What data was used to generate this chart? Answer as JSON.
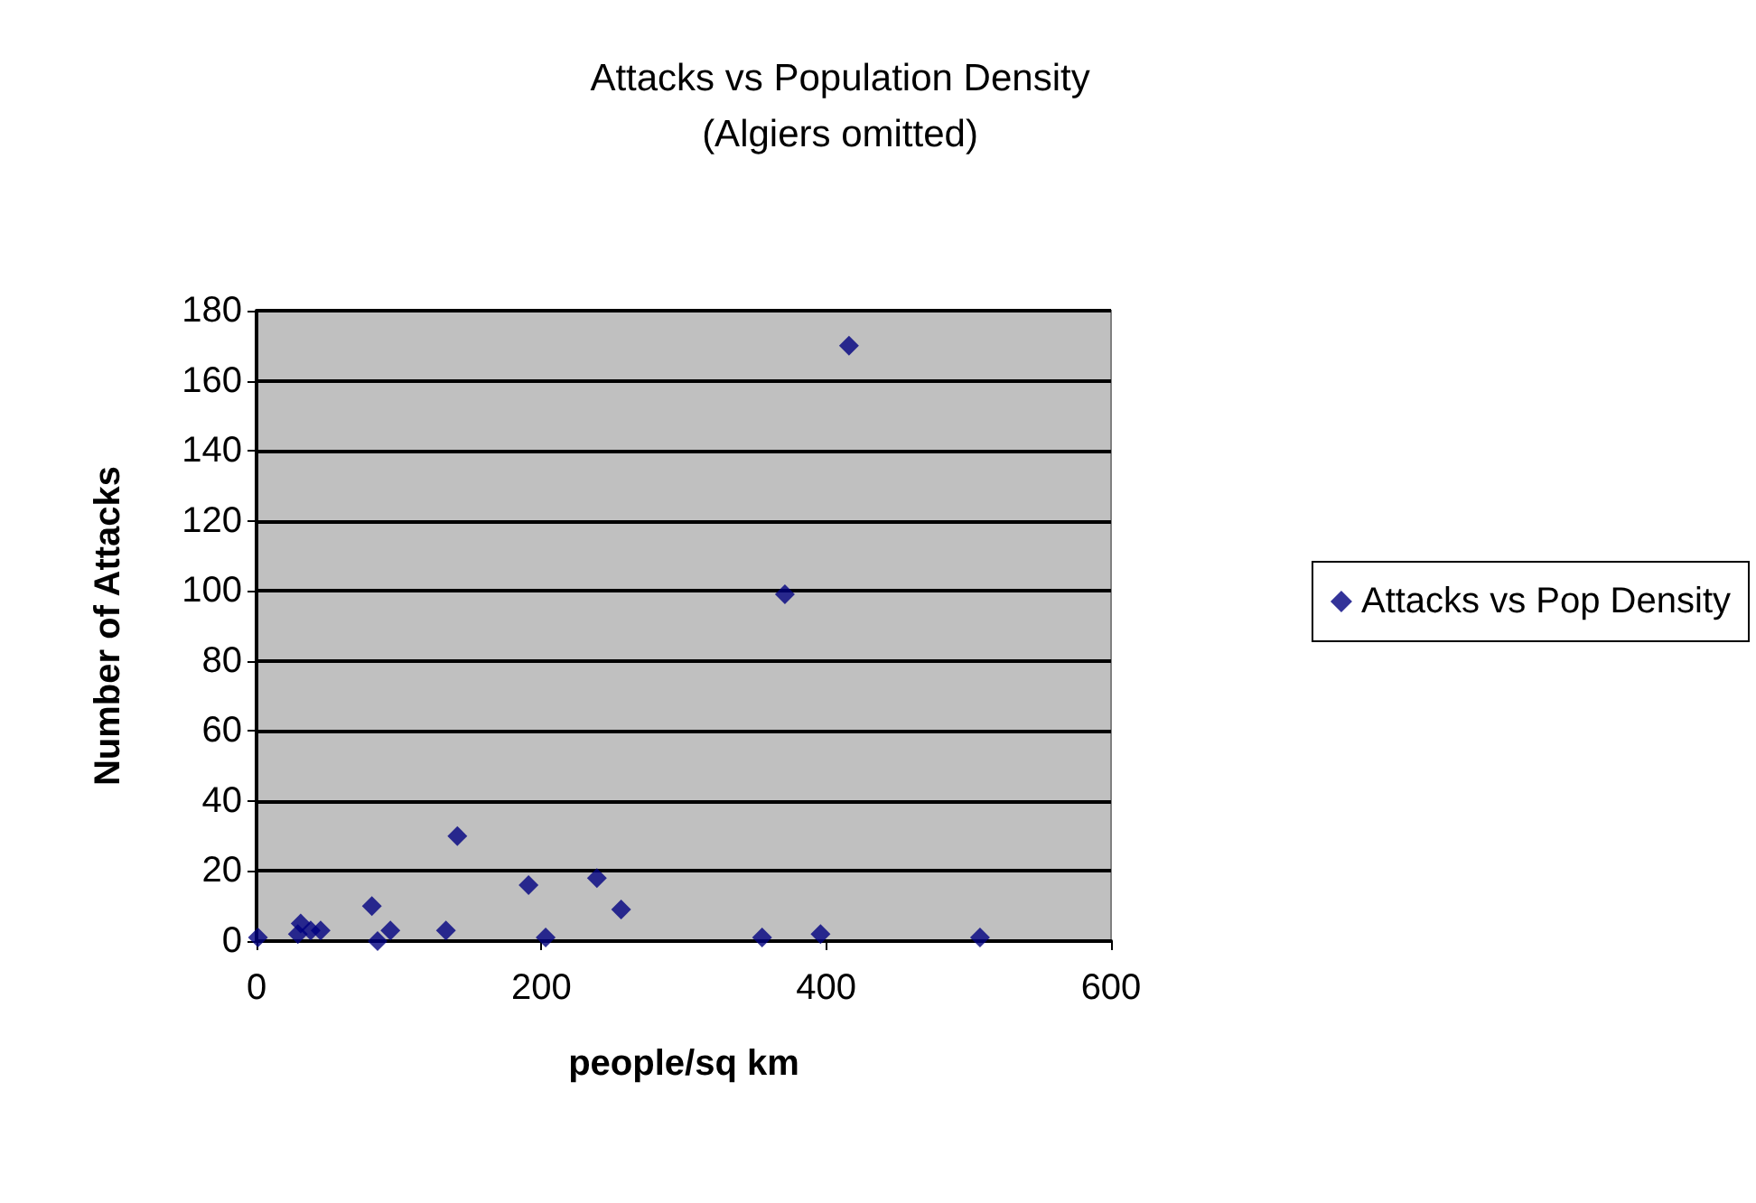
{
  "chart_data": {
    "type": "scatter",
    "title": "Attacks vs Population Density",
    "subtitle": "(Algiers omitted)",
    "xlabel": "people/sq km",
    "ylabel": "Number of Attacks",
    "series": [
      {
        "name": "Attacks vs Pop Density",
        "color": "#000080",
        "x": [
          1,
          29,
          31,
          38,
          45,
          81,
          85,
          94,
          133,
          141,
          191,
          203,
          239,
          256,
          355,
          371,
          396,
          416,
          508
        ],
        "values": [
          1,
          2,
          5,
          3,
          3,
          10,
          0,
          3,
          3,
          30,
          16,
          1,
          18,
          9,
          1,
          99,
          2,
          170,
          1
        ]
      }
    ],
    "xlim": [
      0,
      600
    ],
    "xticks": [
      0,
      200,
      400,
      600
    ],
    "ylim": [
      0,
      180
    ],
    "yticks": [
      0,
      20,
      40,
      60,
      80,
      100,
      120,
      140,
      160,
      180
    ],
    "grid": "y",
    "legend": "right",
    "marker": "diamond"
  }
}
